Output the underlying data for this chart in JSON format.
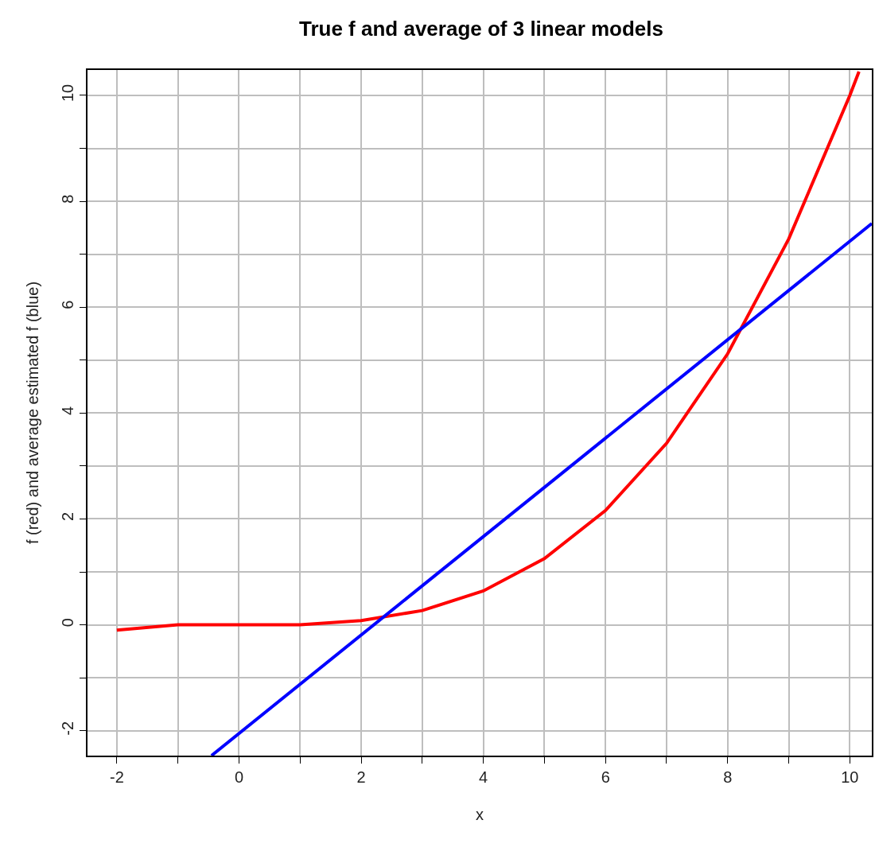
{
  "chart_data": {
    "type": "line",
    "title": "True f and average of 3 linear models",
    "xlabel": "x",
    "ylabel": "f (red) and average estimated f (blue)",
    "xlim": [
      -2.48,
      10.36
    ],
    "ylim": [
      -2.47,
      10.48
    ],
    "xticks": [
      -2,
      {
        "value": -1,
        "label": null
      },
      0,
      {
        "value": 1,
        "label": null
      },
      2,
      {
        "value": 3,
        "label": null
      },
      4,
      {
        "value": 5,
        "label": null
      },
      6,
      {
        "value": 7,
        "label": null
      },
      8,
      {
        "value": 9,
        "label": null
      },
      10
    ],
    "yticks": [
      -2,
      {
        "value": -1,
        "label": null
      },
      0,
      {
        "value": 1,
        "label": null
      },
      2,
      {
        "value": 3,
        "label": null
      },
      4,
      {
        "value": 5,
        "label": null
      },
      6,
      {
        "value": 7,
        "label": null
      },
      8,
      {
        "value": 9,
        "label": null
      },
      10
    ],
    "grid": true,
    "marker": "none",
    "line_style": "solid",
    "series": [
      {
        "color": "#ff0000",
        "x": [
          -2,
          -1,
          0,
          1,
          2,
          3,
          4,
          5,
          6,
          7,
          8,
          9,
          10,
          10.15
        ],
        "values": [
          -0.1,
          0,
          0,
          0,
          0.08,
          0.27,
          0.64,
          1.25,
          2.16,
          3.43,
          5.12,
          7.29,
          10,
          10.45
        ]
      },
      {
        "color": "#0000ff",
        "x": [
          -0.45,
          10.36
        ],
        "values": [
          -2.47,
          7.58
        ]
      }
    ]
  }
}
